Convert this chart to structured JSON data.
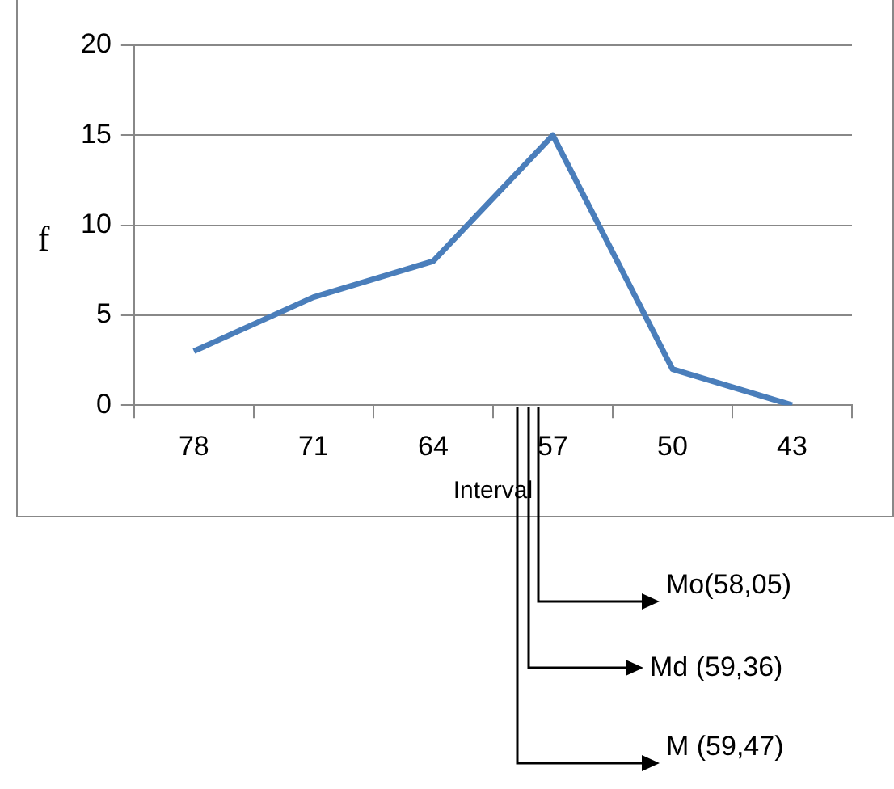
{
  "chart_data": {
    "type": "line",
    "xlabel": "Interval",
    "ylabel": "f",
    "categories": [
      "78",
      "71",
      "64",
      "57",
      "50",
      "43"
    ],
    "series": [
      {
        "color": "#4a7ebb",
        "values": [
          3,
          6,
          8,
          15,
          2,
          0
        ]
      }
    ],
    "ylim": [
      0,
      20
    ],
    "yticks": [
      0,
      5,
      10,
      15,
      20
    ],
    "grid": "y",
    "legend": false,
    "marker": "none",
    "line_style": "solid",
    "annotations": [
      "Mo(58,05)",
      "Md (59,36)",
      "M (59,47)"
    ]
  }
}
